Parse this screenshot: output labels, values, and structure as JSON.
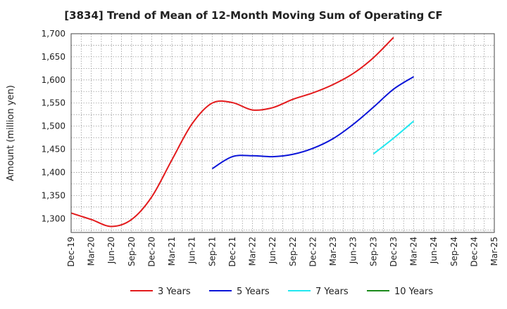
{
  "chart_data": {
    "type": "line",
    "title": "[3834]  Trend of Mean of 12-Month Moving Sum of Operating CF",
    "xlabel": "",
    "ylabel": "Amount (million yen)",
    "ylim": [
      1270,
      1700
    ],
    "yticks": [
      1300,
      1350,
      1400,
      1450,
      1500,
      1550,
      1600,
      1650,
      1700
    ],
    "ytick_labels": [
      "1,300",
      "1,350",
      "1,400",
      "1,450",
      "1,500",
      "1,550",
      "1,600",
      "1,650",
      "1,700"
    ],
    "categories": [
      "Dec-19",
      "Mar-20",
      "Jun-20",
      "Sep-20",
      "Dec-20",
      "Mar-21",
      "Jun-21",
      "Sep-21",
      "Dec-21",
      "Mar-22",
      "Jun-22",
      "Sep-22",
      "Dec-22",
      "Mar-23",
      "Jun-23",
      "Sep-23",
      "Dec-23",
      "Mar-24",
      "Jun-24",
      "Sep-24",
      "Dec-24",
      "Mar-25"
    ],
    "grid": true,
    "legend_position": "bottom",
    "series": [
      {
        "name": "3 Years",
        "color": "#e31a1c",
        "values": [
          1312,
          1298,
          1283,
          1298,
          1347,
          1427,
          1505,
          1550,
          1551,
          1535,
          1540,
          1558,
          1572,
          1590,
          1614,
          1648,
          1692,
          null,
          null,
          null,
          null,
          null
        ]
      },
      {
        "name": "5 Years",
        "color": "#0a14d8",
        "values": [
          null,
          null,
          null,
          null,
          null,
          null,
          null,
          1408,
          1434,
          1436,
          1434,
          1439,
          1452,
          1473,
          1504,
          1541,
          1580,
          1607,
          null,
          null,
          null,
          null
        ]
      },
      {
        "name": "7 Years",
        "color": "#22e8f0",
        "values": [
          null,
          null,
          null,
          null,
          null,
          null,
          null,
          null,
          null,
          null,
          null,
          null,
          null,
          null,
          null,
          1440,
          1474,
          1511,
          null,
          null,
          null,
          null
        ]
      },
      {
        "name": "10 Years",
        "color": "#1a8a1a",
        "values": [
          null,
          null,
          null,
          null,
          null,
          null,
          null,
          null,
          null,
          null,
          null,
          null,
          null,
          null,
          null,
          null,
          null,
          null,
          null,
          null,
          null,
          null
        ]
      }
    ]
  }
}
